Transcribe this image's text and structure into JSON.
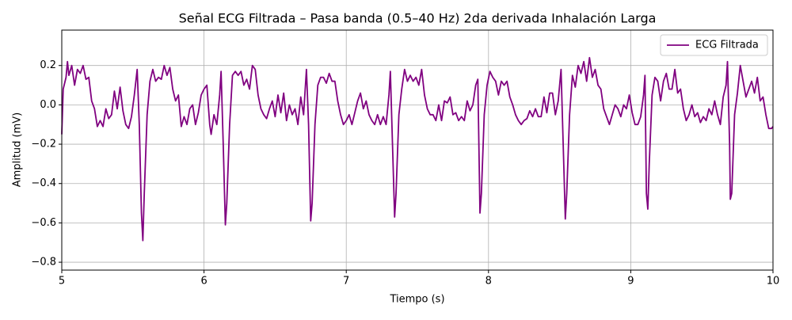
{
  "chart_data": {
    "type": "line",
    "title": "Señal ECG Filtrada – Pasa banda (0.5–40 Hz) 2da derivada Inhalación Larga",
    "xlabel": "Tiempo (s)",
    "ylabel": "Amplitud (mV)",
    "xlim": [
      5,
      10
    ],
    "xticks": [
      5,
      6,
      7,
      8,
      9,
      10
    ],
    "ylim": [
      -0.84,
      0.38
    ],
    "yticks": [
      {
        "value": -0.8,
        "label": "−0.8"
      },
      {
        "value": -0.6,
        "label": "−0.6"
      },
      {
        "value": -0.4,
        "label": "−0.4"
      },
      {
        "value": -0.2,
        "label": "−0.2"
      },
      {
        "value": 0,
        "label": "0.0"
      },
      0.2
    ],
    "grid": true,
    "legend": "upper right",
    "x": [
      5.0,
      5.01,
      5.03,
      5.04,
      5.05,
      5.07,
      5.09,
      5.11,
      5.13,
      5.15,
      5.17,
      5.19,
      5.21,
      5.23,
      5.25,
      5.27,
      5.29,
      5.31,
      5.33,
      5.35,
      5.37,
      5.39,
      5.41,
      5.43,
      5.45,
      5.47,
      5.49,
      5.51,
      5.53,
      5.545,
      5.56,
      5.57,
      5.58,
      5.6,
      5.62,
      5.64,
      5.66,
      5.68,
      5.7,
      5.72,
      5.74,
      5.76,
      5.78,
      5.8,
      5.82,
      5.84,
      5.86,
      5.88,
      5.9,
      5.92,
      5.94,
      5.96,
      5.98,
      6.0,
      6.02,
      6.04,
      6.05,
      6.07,
      6.09,
      6.11,
      6.12,
      6.135,
      6.15,
      6.16,
      6.18,
      6.2,
      6.22,
      6.24,
      6.26,
      6.28,
      6.3,
      6.32,
      6.34,
      6.36,
      6.38,
      6.4,
      6.42,
      6.44,
      6.46,
      6.48,
      6.5,
      6.52,
      6.54,
      6.56,
      6.58,
      6.6,
      6.62,
      6.64,
      6.66,
      6.68,
      6.7,
      6.72,
      6.735,
      6.75,
      6.76,
      6.78,
      6.8,
      6.82,
      6.84,
      6.86,
      6.88,
      6.9,
      6.92,
      6.94,
      6.96,
      6.98,
      7.0,
      7.02,
      7.04,
      7.06,
      7.08,
      7.1,
      7.12,
      7.14,
      7.16,
      7.18,
      7.2,
      7.22,
      7.24,
      7.26,
      7.28,
      7.3,
      7.31,
      7.325,
      7.34,
      7.35,
      7.37,
      7.39,
      7.41,
      7.43,
      7.45,
      7.47,
      7.49,
      7.51,
      7.53,
      7.55,
      7.57,
      7.59,
      7.61,
      7.63,
      7.65,
      7.67,
      7.69,
      7.71,
      7.73,
      7.75,
      7.77,
      7.79,
      7.81,
      7.83,
      7.85,
      7.87,
      7.89,
      7.91,
      7.925,
      7.94,
      7.95,
      7.97,
      7.99,
      8.01,
      8.03,
      8.05,
      8.07,
      8.09,
      8.11,
      8.13,
      8.15,
      8.17,
      8.19,
      8.21,
      8.23,
      8.25,
      8.27,
      8.29,
      8.31,
      8.33,
      8.35,
      8.37,
      8.39,
      8.41,
      8.43,
      8.45,
      8.47,
      8.49,
      8.51,
      8.525,
      8.54,
      8.55,
      8.57,
      8.59,
      8.61,
      8.63,
      8.65,
      8.67,
      8.69,
      8.71,
      8.73,
      8.75,
      8.77,
      8.79,
      8.81,
      8.83,
      8.85,
      8.87,
      8.89,
      8.91,
      8.93,
      8.95,
      8.97,
      8.99,
      9.01,
      9.03,
      9.05,
      9.07,
      9.09,
      9.1,
      9.11,
      9.12,
      9.13,
      9.15,
      9.17,
      9.19,
      9.21,
      9.23,
      9.25,
      9.27,
      9.29,
      9.31,
      9.33,
      9.35,
      9.37,
      9.39,
      9.41,
      9.43,
      9.45,
      9.47,
      9.49,
      9.51,
      9.53,
      9.55,
      9.57,
      9.59,
      9.61,
      9.63,
      9.65,
      9.67,
      9.68,
      9.695,
      9.7,
      9.71,
      9.73,
      9.75,
      9.77,
      9.79,
      9.81,
      9.83,
      9.85,
      9.87,
      9.89,
      9.91,
      9.93,
      9.95,
      9.97,
      9.99,
      10.0
    ],
    "series": [
      {
        "name": "ECG Filtrada",
        "color": "#800080",
        "values": [
          -0.15,
          0.08,
          0.14,
          0.22,
          0.15,
          0.2,
          0.1,
          0.18,
          0.16,
          0.2,
          0.13,
          0.14,
          0.02,
          -0.02,
          -0.11,
          -0.08,
          -0.11,
          -0.02,
          -0.07,
          -0.05,
          0.07,
          -0.02,
          0.09,
          -0.03,
          -0.1,
          -0.12,
          -0.06,
          0.05,
          0.18,
          -0.1,
          -0.55,
          -0.69,
          -0.45,
          -0.05,
          0.12,
          0.18,
          0.12,
          0.14,
          0.13,
          0.2,
          0.15,
          0.19,
          0.08,
          0.02,
          0.05,
          -0.11,
          -0.06,
          -0.1,
          -0.02,
          0.0,
          -0.1,
          -0.04,
          0.05,
          0.08,
          0.1,
          -0.1,
          -0.15,
          -0.05,
          -0.1,
          0.05,
          0.17,
          -0.2,
          -0.61,
          -0.5,
          -0.1,
          0.15,
          0.17,
          0.15,
          0.17,
          0.1,
          0.13,
          0.08,
          0.2,
          0.18,
          0.05,
          -0.02,
          -0.05,
          -0.07,
          -0.02,
          0.02,
          -0.06,
          0.05,
          -0.04,
          0.06,
          -0.08,
          0.0,
          -0.05,
          -0.02,
          -0.1,
          0.04,
          -0.05,
          0.18,
          -0.1,
          -0.59,
          -0.5,
          -0.1,
          0.1,
          0.14,
          0.14,
          0.11,
          0.16,
          0.12,
          0.12,
          0.02,
          -0.05,
          -0.1,
          -0.08,
          -0.05,
          -0.1,
          -0.04,
          0.02,
          0.06,
          -0.02,
          0.02,
          -0.05,
          -0.08,
          -0.1,
          -0.05,
          -0.1,
          -0.06,
          -0.1,
          0.05,
          0.17,
          -0.2,
          -0.57,
          -0.45,
          -0.05,
          0.08,
          0.18,
          0.12,
          0.15,
          0.12,
          0.14,
          0.1,
          0.18,
          0.05,
          -0.02,
          -0.05,
          -0.05,
          -0.08,
          0.0,
          -0.08,
          0.02,
          0.01,
          0.04,
          -0.05,
          -0.04,
          -0.08,
          -0.06,
          -0.08,
          0.02,
          -0.03,
          0.0,
          0.1,
          0.13,
          -0.55,
          -0.45,
          -0.05,
          0.1,
          0.17,
          0.14,
          0.12,
          0.05,
          0.12,
          0.1,
          0.12,
          0.04,
          0.0,
          -0.05,
          -0.08,
          -0.1,
          -0.08,
          -0.07,
          -0.03,
          -0.06,
          -0.02,
          -0.06,
          -0.06,
          0.04,
          -0.04,
          0.06,
          0.06,
          -0.05,
          0.02,
          0.18,
          -0.2,
          -0.58,
          -0.45,
          -0.05,
          0.15,
          0.09,
          0.2,
          0.16,
          0.22,
          0.12,
          0.24,
          0.14,
          0.18,
          0.1,
          0.08,
          -0.02,
          -0.06,
          -0.1,
          -0.05,
          0.0,
          -0.02,
          -0.06,
          0.0,
          -0.02,
          0.05,
          -0.04,
          -0.1,
          -0.1,
          -0.06,
          0.05,
          0.15,
          -0.45,
          -0.53,
          -0.3,
          0.05,
          0.14,
          0.12,
          0.02,
          0.12,
          0.16,
          0.08,
          0.08,
          0.18,
          0.06,
          0.08,
          -0.02,
          -0.08,
          -0.05,
          0.0,
          -0.06,
          -0.04,
          -0.09,
          -0.06,
          -0.08,
          -0.02,
          -0.05,
          0.02,
          -0.05,
          -0.1,
          0.04,
          0.1,
          0.22,
          -0.2,
          -0.48,
          -0.45,
          -0.05,
          0.06,
          0.2,
          0.12,
          0.04,
          0.08,
          0.12,
          0.06,
          0.14,
          0.02,
          0.04,
          -0.05,
          -0.12,
          -0.12,
          -0.11
        ]
      }
    ]
  }
}
